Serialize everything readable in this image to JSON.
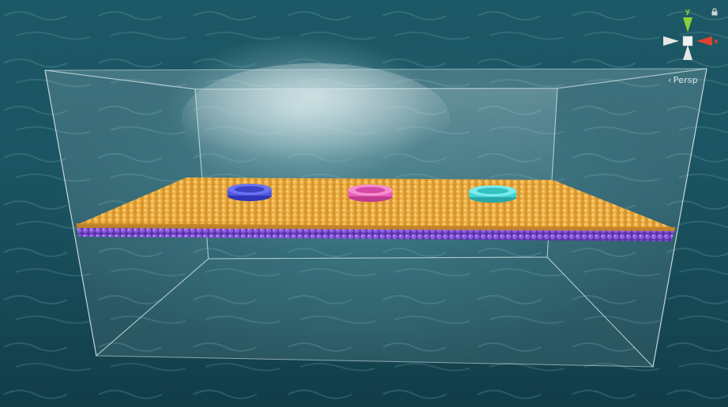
{
  "scene_view": {
    "projection_label": "Persp",
    "gizmo": {
      "y_axis_label": "y",
      "x_axis_label": "x",
      "colors": {
        "y": "#8ad03b",
        "x": "#e2412f",
        "neutral": "#e6e6e6"
      }
    }
  },
  "scene": {
    "membrane_colors": {
      "top_layer": "#e7a43c",
      "bottom_layer": "#8a5ad8"
    },
    "ring_colors": {
      "left": "#4f58e0",
      "center": "#e860b8",
      "right": "#3fd5d5"
    },
    "water_box_tint": "#cfe3e6"
  }
}
